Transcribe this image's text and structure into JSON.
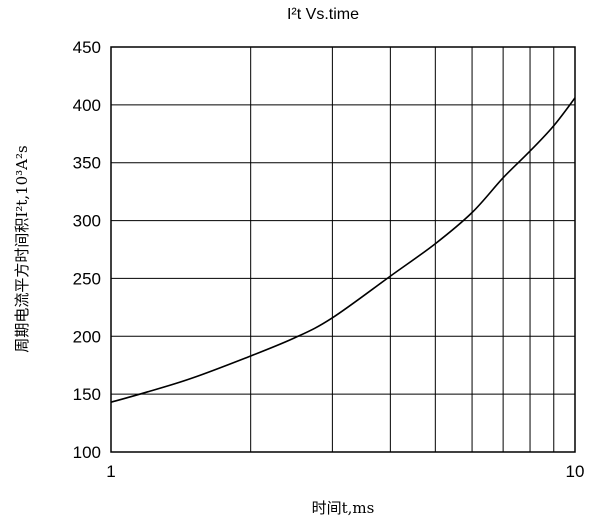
{
  "chart_data": {
    "type": "line",
    "title": "I²t  Vs.time",
    "xlabel": "时间t,ms",
    "ylabel": "周期电流平方时间积I²t,10³A²s",
    "xscale": "log",
    "xlim": [
      1,
      10
    ],
    "ylim": [
      100,
      450
    ],
    "xticks": [
      1,
      10
    ],
    "xtick_labels": [
      "1",
      "10"
    ],
    "yticks": [
      100,
      150,
      200,
      250,
      300,
      350,
      400,
      450
    ],
    "ytick_labels": [
      "100",
      "150",
      "200",
      "250",
      "300",
      "350",
      "400",
      "450"
    ],
    "grid": true,
    "series": [
      {
        "x": [
          1,
          1.2,
          1.5,
          2,
          2.5,
          3,
          4,
          5,
          6,
          7,
          8,
          9,
          10
        ],
        "y": [
          143,
          152,
          164,
          183,
          199,
          216,
          252,
          280,
          307,
          337,
          360,
          382,
          406
        ]
      }
    ]
  }
}
